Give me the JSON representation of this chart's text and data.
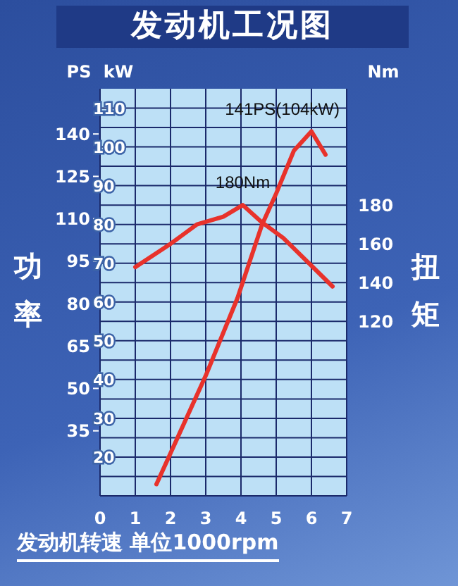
{
  "chart_data": {
    "type": "line",
    "title": "发动机工况图",
    "xlabel": "发动机转速 单位1000rpm",
    "ylabel": "功率",
    "y2label": "扭矩",
    "xlim": [
      0,
      7
    ],
    "xticks": [
      0,
      1,
      2,
      3,
      4,
      5,
      6,
      7
    ],
    "ylim": [
      10,
      115
    ],
    "yticks": [
      {
        "value": 15,
        "label": null
      },
      20,
      {
        "value": 25,
        "label": null
      },
      30,
      {
        "value": 35,
        "label": null
      },
      40,
      {
        "value": 45,
        "label": null
      },
      50,
      {
        "value": 55,
        "label": null
      },
      60,
      {
        "value": 65,
        "label": null
      },
      70,
      {
        "value": 75,
        "label": null
      },
      80,
      {
        "value": 85,
        "label": null
      },
      90,
      {
        "value": 95,
        "label": null
      },
      100,
      {
        "value": 105,
        "label": null
      },
      110
    ],
    "y2lim": [
      30,
      240
    ],
    "y2ticks": [
      120,
      140,
      160,
      180
    ],
    "y3lim": [
      12,
      156
    ],
    "y3ticks": [
      35,
      50,
      65,
      80,
      95,
      110,
      125,
      140
    ],
    "series": [
      {
        "color": "#e8322b",
        "x": [
          1.6,
          2,
          3,
          3.9,
          4.6,
          5,
          5.5,
          6,
          6.4
        ],
        "values": [
          13,
          21,
          41,
          61,
          80,
          88,
          99,
          104,
          98
        ]
      },
      {
        "color": "#e8322b",
        "axis": "y2",
        "x": [
          1,
          2,
          2.75,
          3.5,
          4.05,
          4.6,
          5.2,
          6.6
        ],
        "values": [
          148,
          160,
          170,
          174,
          180,
          171,
          163,
          138
        ]
      }
    ],
    "annotations": [
      "141PS(104kW)",
      "180Nm",
      "PS",
      "kW",
      "Nm"
    ],
    "grid": true,
    "marker": "none",
    "line_style": "solid"
  }
}
